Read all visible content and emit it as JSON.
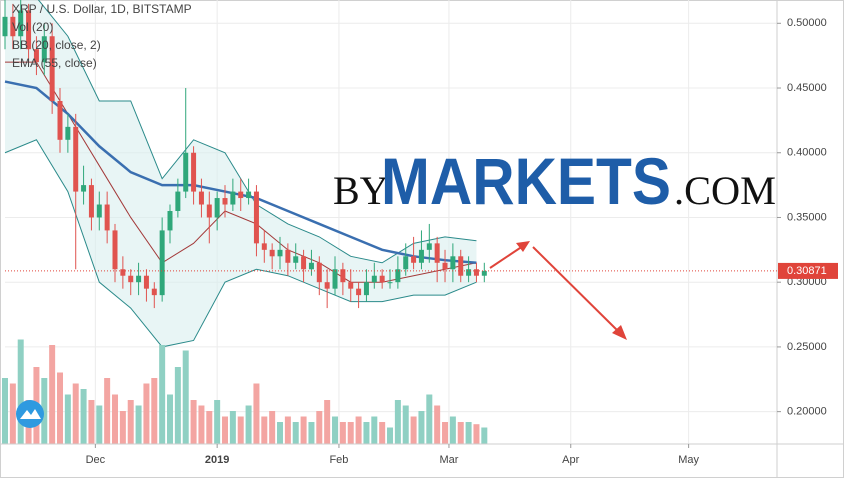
{
  "chart_data": {
    "type": "candlestick",
    "title": "XRP / U.S. Dollar, 1D, BITSTAMP",
    "indicators": [
      "Vol (20)",
      "BB (20, close, 2)",
      "EMA (55, close)"
    ],
    "watermark": {
      "prefix": "BY",
      "main": "MARKETS",
      "suffix": ".COM"
    },
    "x": [
      7,
      9,
      11,
      13,
      15,
      17,
      19,
      21,
      23,
      25,
      27,
      29,
      31,
      33,
      35,
      37,
      39,
      41,
      43,
      45,
      47,
      49,
      51,
      53,
      55,
      57,
      59,
      61,
      63,
      65,
      67,
      69,
      71,
      73,
      75,
      77,
      79,
      81,
      83,
      85,
      87,
      89,
      91,
      93,
      95,
      97,
      99,
      101,
      103,
      105,
      107,
      109,
      111,
      113,
      115,
      117,
      119,
      121,
      123,
      125,
      127,
      129
    ],
    "open": [
      0.49,
      0.505,
      0.49,
      0.51,
      0.48,
      0.47,
      0.49,
      0.44,
      0.41,
      0.42,
      0.37,
      0.375,
      0.35,
      0.36,
      0.34,
      0.31,
      0.305,
      0.3,
      0.305,
      0.295,
      0.29,
      0.34,
      0.355,
      0.37,
      0.4,
      0.37,
      0.36,
      0.35,
      0.365,
      0.36,
      0.37,
      0.365,
      0.37,
      0.33,
      0.325,
      0.32,
      0.325,
      0.315,
      0.32,
      0.31,
      0.315,
      0.3,
      0.295,
      0.31,
      0.3,
      0.295,
      0.29,
      0.3,
      0.305,
      0.3,
      0.3,
      0.31,
      0.32,
      0.315,
      0.325,
      0.33,
      0.315,
      0.31,
      0.32,
      0.305,
      0.31,
      0.305
    ],
    "high": [
      0.52,
      0.515,
      0.52,
      0.515,
      0.49,
      0.5,
      0.5,
      0.45,
      0.43,
      0.43,
      0.39,
      0.38,
      0.37,
      0.37,
      0.345,
      0.32,
      0.31,
      0.315,
      0.31,
      0.3,
      0.35,
      0.36,
      0.38,
      0.45,
      0.405,
      0.38,
      0.37,
      0.37,
      0.375,
      0.38,
      0.38,
      0.38,
      0.375,
      0.34,
      0.33,
      0.335,
      0.33,
      0.33,
      0.325,
      0.325,
      0.32,
      0.31,
      0.32,
      0.315,
      0.31,
      0.3,
      0.31,
      0.315,
      0.31,
      0.31,
      0.32,
      0.33,
      0.335,
      0.34,
      0.345,
      0.335,
      0.325,
      0.33,
      0.325,
      0.32,
      0.315,
      0.315
    ],
    "low": [
      0.48,
      0.48,
      0.48,
      0.47,
      0.46,
      0.46,
      0.43,
      0.4,
      0.4,
      0.31,
      0.36,
      0.34,
      0.34,
      0.33,
      0.3,
      0.295,
      0.29,
      0.29,
      0.285,
      0.28,
      0.285,
      0.33,
      0.35,
      0.365,
      0.36,
      0.35,
      0.33,
      0.34,
      0.35,
      0.355,
      0.355,
      0.36,
      0.32,
      0.315,
      0.31,
      0.31,
      0.305,
      0.31,
      0.3,
      0.305,
      0.29,
      0.28,
      0.29,
      0.29,
      0.285,
      0.28,
      0.285,
      0.295,
      0.295,
      0.295,
      0.295,
      0.305,
      0.31,
      0.31,
      0.315,
      0.3,
      0.3,
      0.3,
      0.3,
      0.3,
      0.3,
      0.3
    ],
    "close": [
      0.505,
      0.49,
      0.51,
      0.48,
      0.47,
      0.49,
      0.44,
      0.41,
      0.42,
      0.37,
      0.375,
      0.35,
      0.36,
      0.34,
      0.31,
      0.305,
      0.3,
      0.305,
      0.295,
      0.29,
      0.34,
      0.355,
      0.37,
      0.4,
      0.37,
      0.36,
      0.35,
      0.365,
      0.36,
      0.37,
      0.365,
      0.37,
      0.33,
      0.325,
      0.32,
      0.325,
      0.315,
      0.32,
      0.31,
      0.315,
      0.3,
      0.295,
      0.31,
      0.3,
      0.295,
      0.29,
      0.3,
      0.305,
      0.3,
      0.3,
      0.31,
      0.32,
      0.315,
      0.325,
      0.33,
      0.315,
      0.31,
      0.32,
      0.305,
      0.31,
      0.305,
      0.3087
    ],
    "volume": [
      60,
      55,
      95,
      40,
      70,
      60,
      90,
      65,
      45,
      55,
      50,
      40,
      35,
      60,
      45,
      30,
      40,
      35,
      55,
      60,
      90,
      45,
      70,
      85,
      40,
      35,
      30,
      40,
      25,
      30,
      25,
      35,
      55,
      25,
      30,
      20,
      25,
      20,
      25,
      20,
      30,
      40,
      25,
      20,
      20,
      25,
      20,
      25,
      20,
      15,
      40,
      35,
      25,
      30,
      45,
      35,
      20,
      25,
      20,
      20,
      18,
      15
    ],
    "volume_lim": [
      0,
      100
    ],
    "up_color": "#2fa77a",
    "down_color": "#e0534f",
    "volume_up_color": "#8fd0c3",
    "volume_down_color": "#f3a5a2",
    "overlays": {
      "x": [
        7,
        15,
        23,
        31,
        39,
        47,
        55,
        63,
        71,
        79,
        87,
        95,
        103,
        111,
        119,
        127
      ],
      "band": {
        "upper": [
          0.52,
          0.52,
          0.49,
          0.44,
          0.44,
          0.38,
          0.41,
          0.4,
          0.36,
          0.345,
          0.335,
          0.32,
          0.315,
          0.33,
          0.335,
          0.332
        ],
        "lower": [
          0.4,
          0.41,
          0.37,
          0.3,
          0.28,
          0.25,
          0.255,
          0.3,
          0.31,
          0.305,
          0.295,
          0.285,
          0.285,
          0.29,
          0.29,
          0.3
        ],
        "color": "#2a8a8a",
        "fill": "#d9efef"
      },
      "lines": [
        {
          "color": "#a33a3a",
          "width": 1,
          "values": [
            0.47,
            0.47,
            0.43,
            0.39,
            0.35,
            0.315,
            0.33,
            0.355,
            0.345,
            0.325,
            0.315,
            0.3,
            0.3,
            0.305,
            0.31,
            0.315
          ]
        },
        {
          "color": "#3a6fb0",
          "width": 2.5,
          "values": [
            0.455,
            0.45,
            0.43,
            0.405,
            0.385,
            0.375,
            0.375,
            0.37,
            0.365,
            0.355,
            0.345,
            0.335,
            0.325,
            0.32,
            0.317,
            0.315
          ]
        }
      ]
    },
    "last_price": 0.30871,
    "last_price_color": "#e0443a",
    "xlim": [
      7,
      203.5
    ],
    "xticks": [
      {
        "value": 30,
        "label": "Dec"
      },
      {
        "value": 61,
        "label": "2019"
      },
      {
        "value": 92,
        "label": "Feb"
      },
      {
        "value": 120,
        "label": "Mar"
      },
      {
        "value": 151,
        "label": "Apr"
      },
      {
        "value": 181,
        "label": "May"
      }
    ],
    "ylim": [
      0.175,
      0.518
    ],
    "yticks": [
      {
        "value": 0.2,
        "label": "0.20000"
      },
      {
        "value": 0.25,
        "label": "0.25000"
      },
      {
        "value": 0.3,
        "label": "0.30000"
      },
      {
        "value": 0.35,
        "label": "0.35000"
      },
      {
        "value": 0.4,
        "label": "0.40000"
      },
      {
        "value": 0.45,
        "label": "0.45000"
      },
      {
        "value": 0.5,
        "label": "0.50000"
      }
    ],
    "grid": true
  }
}
